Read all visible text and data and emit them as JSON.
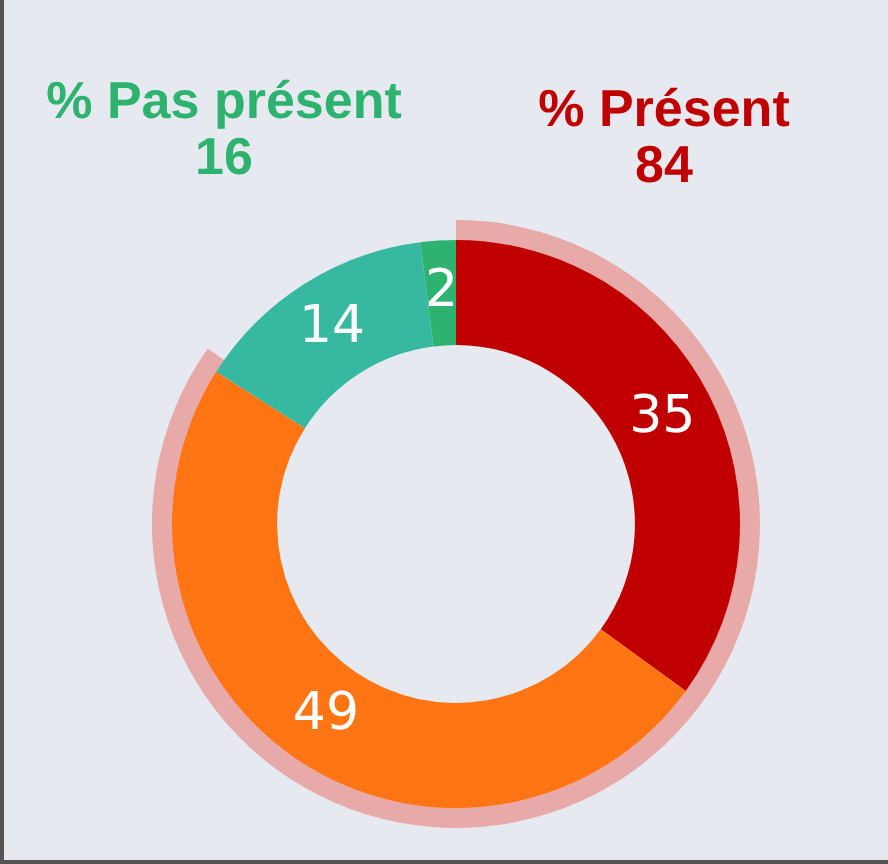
{
  "chart_data": {
    "type": "donut",
    "categories": [
      null,
      null,
      null,
      null
    ],
    "values": [
      35,
      49,
      14,
      2
    ],
    "colors": [
      "#c00000",
      "#ff7514",
      "#36b9a0",
      "#2db36f"
    ],
    "data_labels": true,
    "annotations": [
      "% Pas présent\n16",
      "% Présent\n84"
    ]
  }
}
